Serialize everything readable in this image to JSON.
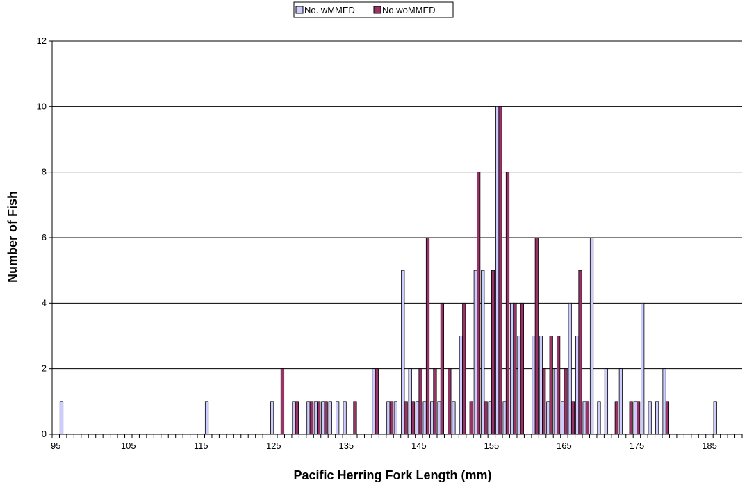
{
  "chart_data": {
    "type": "bar",
    "title": "",
    "xlabel": "Pacific Herring Fork Length (mm)",
    "ylabel": "Number of Fish",
    "x_range": [
      95,
      190
    ],
    "xticks": [
      95,
      105,
      115,
      125,
      135,
      145,
      155,
      165,
      175,
      185
    ],
    "ylim": [
      0,
      12
    ],
    "yticks": [
      0,
      2,
      4,
      6,
      8,
      10,
      12
    ],
    "grid": "horizontal major gridlines",
    "legend_position": "top-center",
    "series": [
      {
        "name": "No. wMMED",
        "color": "#ccccff",
        "points": [
          [
            96,
            1
          ],
          [
            116,
            1
          ],
          [
            125,
            1
          ],
          [
            128,
            1
          ],
          [
            130,
            1
          ],
          [
            131,
            1
          ],
          [
            132,
            1
          ],
          [
            133,
            1
          ],
          [
            134,
            1
          ],
          [
            135,
            1
          ],
          [
            139,
            2
          ],
          [
            141,
            1
          ],
          [
            142,
            1
          ],
          [
            143,
            5
          ],
          [
            144,
            2
          ],
          [
            145,
            1
          ],
          [
            146,
            1
          ],
          [
            147,
            1
          ],
          [
            148,
            1
          ],
          [
            150,
            1
          ],
          [
            151,
            3
          ],
          [
            153,
            5
          ],
          [
            154,
            5
          ],
          [
            155,
            1
          ],
          [
            156,
            10
          ],
          [
            157,
            1
          ],
          [
            158,
            4
          ],
          [
            159,
            3
          ],
          [
            161,
            3
          ],
          [
            162,
            3
          ],
          [
            163,
            1
          ],
          [
            164,
            2
          ],
          [
            165,
            1
          ],
          [
            166,
            4
          ],
          [
            167,
            3
          ],
          [
            168,
            1
          ],
          [
            169,
            6
          ],
          [
            170,
            1
          ],
          [
            171,
            2
          ],
          [
            173,
            2
          ],
          [
            175,
            1
          ],
          [
            176,
            4
          ],
          [
            177,
            1
          ],
          [
            178,
            1
          ],
          [
            179,
            2
          ],
          [
            186,
            1
          ]
        ]
      },
      {
        "name": "No.woMMED",
        "color": "#993366",
        "points": [
          [
            126,
            2
          ],
          [
            128,
            1
          ],
          [
            130,
            1
          ],
          [
            131,
            1
          ],
          [
            132,
            1
          ],
          [
            136,
            1
          ],
          [
            139,
            2
          ],
          [
            141,
            1
          ],
          [
            143,
            1
          ],
          [
            144,
            1
          ],
          [
            145,
            2
          ],
          [
            146,
            6
          ],
          [
            147,
            2
          ],
          [
            148,
            4
          ],
          [
            149,
            2
          ],
          [
            151,
            4
          ],
          [
            152,
            1
          ],
          [
            153,
            8
          ],
          [
            154,
            1
          ],
          [
            155,
            5
          ],
          [
            156,
            10
          ],
          [
            157,
            8
          ],
          [
            158,
            4
          ],
          [
            159,
            4
          ],
          [
            161,
            6
          ],
          [
            162,
            2
          ],
          [
            163,
            3
          ],
          [
            164,
            3
          ],
          [
            165,
            2
          ],
          [
            166,
            1
          ],
          [
            167,
            5
          ],
          [
            168,
            1
          ],
          [
            172,
            1
          ],
          [
            174,
            1
          ],
          [
            175,
            1
          ],
          [
            179,
            1
          ]
        ]
      }
    ]
  }
}
